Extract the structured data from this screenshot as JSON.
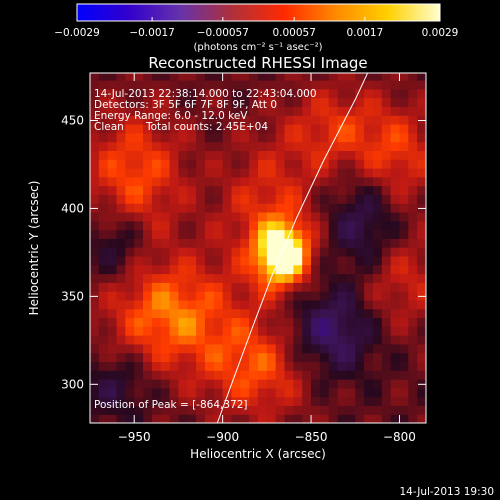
{
  "chart_data": {
    "type": "heatmap",
    "title": "Reconstructed RHESSI Image",
    "xlabel": "Heliocentric X (arcsec)",
    "ylabel": "Heliocentric Y (arcsec)",
    "xlim": [
      -975,
      -785
    ],
    "ylim": [
      278,
      477
    ],
    "x_ticks": [
      -950,
      -900,
      -850,
      -800
    ],
    "x_tick_labels": [
      "−950",
      "−900",
      "−850",
      "−800"
    ],
    "y_ticks": [
      300,
      350,
      400,
      450
    ],
    "y_tick_labels": [
      "300",
      "350",
      "400",
      "450"
    ],
    "colorbar": {
      "min": -0.0029,
      "max": 0.0029,
      "ticks": [
        -0.0029,
        -0.0017,
        -0.00057,
        0.00057,
        0.0017,
        0.0029
      ],
      "tick_labels": [
        "−0.0029",
        "−0.0017",
        "−0.00057",
        "0.00057",
        "0.0017",
        "0.0029"
      ],
      "units_label": "(photons cm⁻² s⁻¹ asec⁻²)",
      "colors": [
        "#0000ff",
        "#3300cc",
        "#6633aa",
        "#b0303a",
        "#ff2a00",
        "#ff8a00",
        "#ffd000",
        "#ffffd0"
      ]
    },
    "annotations": {
      "time_range": "14-Jul-2013 22:38:14.000 to 22:43:04.000",
      "detectors": "Detectors: 3F 5F 6F 7F 8F 9F, Att 0",
      "energy": "Energy Range: 6.0 - 12.0 keV",
      "clean_label": "Clean",
      "total_counts": "Total counts: 2.45E+04",
      "peak": "Position of Peak = [-864,372]"
    },
    "peak_position": [
      -864,
      372
    ],
    "limb_curve": [
      [
        -903,
        278
      ],
      [
        -895,
        300
      ],
      [
        -884,
        330
      ],
      [
        -872,
        362
      ],
      [
        -858,
        395
      ],
      [
        -843,
        427
      ],
      [
        -825,
        462
      ],
      [
        -818,
        477
      ]
    ],
    "sources": [
      {
        "x": -866,
        "y": 374,
        "sx": 10,
        "sy": 12,
        "amp": 1.0
      },
      {
        "x": -874,
        "y": 396,
        "sx": 20,
        "sy": 30,
        "amp": 0.35
      },
      {
        "x": -930,
        "y": 340,
        "sx": 25,
        "sy": 22,
        "amp": 0.55
      },
      {
        "x": -950,
        "y": 420,
        "sx": 20,
        "sy": 25,
        "amp": 0.45
      },
      {
        "x": -880,
        "y": 310,
        "sx": 22,
        "sy": 20,
        "amp": 0.45
      },
      {
        "x": -835,
        "y": 445,
        "sx": 20,
        "sy": 18,
        "amp": 0.35
      },
      {
        "x": -800,
        "y": 430,
        "sx": 15,
        "sy": 20,
        "amp": 0.35
      },
      {
        "x": -800,
        "y": 360,
        "sx": 18,
        "sy": 20,
        "amp": 0.3
      },
      {
        "x": -840,
        "y": 330,
        "sx": 18,
        "sy": 18,
        "amp": -0.45
      },
      {
        "x": -820,
        "y": 390,
        "sx": 15,
        "sy": 20,
        "amp": -0.35
      },
      {
        "x": -960,
        "y": 380,
        "sx": 12,
        "sy": 15,
        "amp": -0.3
      },
      {
        "x": -960,
        "y": 300,
        "sx": 14,
        "sy": 14,
        "amp": -0.25
      }
    ]
  },
  "footer": {
    "timestamp": "14-Jul-2013 19:30"
  }
}
